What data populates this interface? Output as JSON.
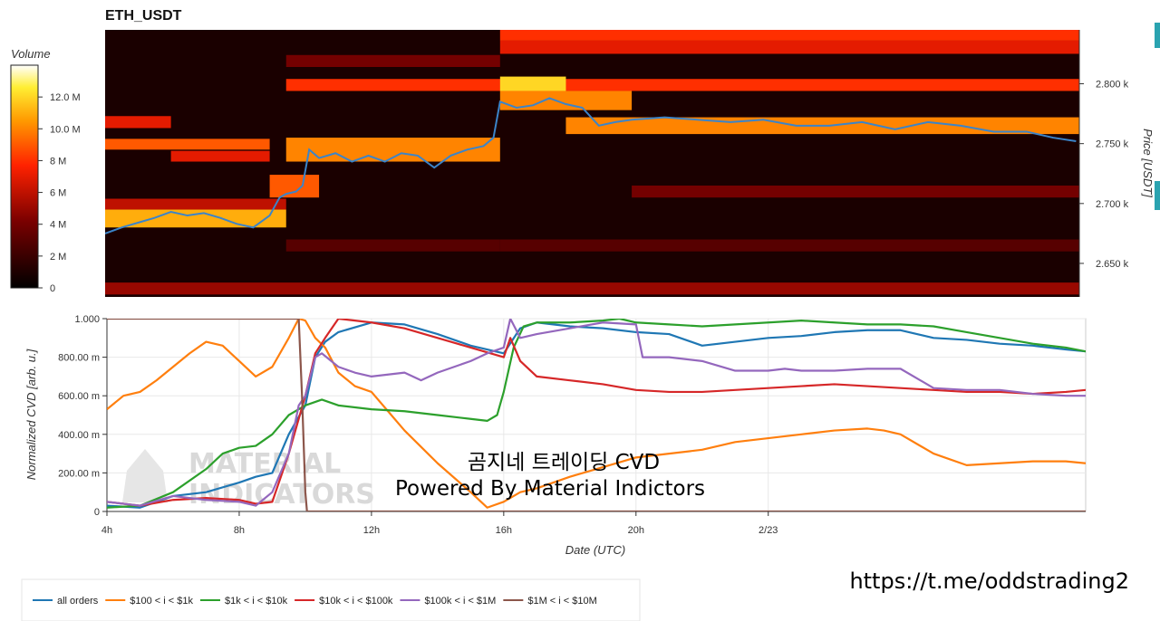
{
  "colors": {
    "all": "#1f77b4",
    "s100": "#ff7f0e",
    "s1k": "#2ca02c",
    "s10k": "#d62728",
    "s100k": "#9467bd",
    "s1m": "#8c564b",
    "price_line": "#3b84c9",
    "accent": "#2aa3b0"
  },
  "chart_data": [
    {
      "type": "heatmap",
      "title": "ETH_USDT",
      "ylabel": "Price [USDT]",
      "y_ticks": [
        "2.800 k",
        "2.750 k",
        "2.700 k",
        "2.650 k"
      ],
      "y_tick_values": [
        2800,
        2750,
        2700,
        2650
      ],
      "ylim": [
        2622,
        2845
      ],
      "xlim": [
        4,
        33.6
      ],
      "colorbar": {
        "label": "Volume",
        "ticks": [
          "12.0 M",
          "10.0 M",
          "8 M",
          "6 M",
          "4 M",
          "2 M",
          "0"
        ],
        "tick_values": [
          12,
          10,
          8,
          6,
          4,
          2,
          0
        ],
        "range": [
          0,
          14
        ]
      },
      "price_series": {
        "x": [
          4,
          4.5,
          5,
          5.5,
          6,
          6.5,
          7,
          7.5,
          8,
          8.5,
          9,
          9.3,
          9.5,
          9.8,
          10,
          10.2,
          10.5,
          11,
          11.5,
          12,
          12.5,
          13,
          13.5,
          14,
          14.5,
          15,
          15.5,
          15.8,
          16,
          16.5,
          17,
          17.5,
          18,
          18.5,
          19,
          19.5,
          20,
          21,
          22,
          23,
          24,
          25,
          26,
          27,
          28,
          29,
          30,
          31,
          32,
          32.8,
          33.5
        ],
        "y": [
          2675,
          2680,
          2684,
          2688,
          2693,
          2690,
          2692,
          2688,
          2683,
          2680,
          2690,
          2705,
          2708,
          2710,
          2715,
          2745,
          2738,
          2742,
          2735,
          2740,
          2735,
          2742,
          2740,
          2730,
          2740,
          2745,
          2748,
          2755,
          2785,
          2780,
          2782,
          2788,
          2783,
          2780,
          2765,
          2768,
          2770,
          2772,
          2770,
          2768,
          2770,
          2765,
          2765,
          2768,
          2762,
          2768,
          2765,
          2760,
          2760,
          2755,
          2752
        ]
      },
      "heat_bands": [
        {
          "x0": 16,
          "x1": 33.6,
          "y0": 2836,
          "y1": 2845,
          "v": 8
        },
        {
          "x0": 16,
          "x1": 33.6,
          "y0": 2825,
          "y1": 2836,
          "v": 7
        },
        {
          "x0": 9.5,
          "x1": 16,
          "y0": 2814,
          "y1": 2824,
          "v": 4
        },
        {
          "x0": 9.5,
          "x1": 33.6,
          "y0": 2794,
          "y1": 2804,
          "v": 8
        },
        {
          "x0": 16,
          "x1": 18,
          "y0": 2794,
          "y1": 2806,
          "v": 12
        },
        {
          "x0": 16,
          "x1": 20,
          "y0": 2778,
          "y1": 2794,
          "v": 10
        },
        {
          "x0": 18,
          "x1": 33.6,
          "y0": 2758,
          "y1": 2772,
          "v": 10
        },
        {
          "x0": 4,
          "x1": 6,
          "y0": 2763,
          "y1": 2773,
          "v": 7
        },
        {
          "x0": 4,
          "x1": 9,
          "y0": 2745,
          "y1": 2754,
          "v": 9
        },
        {
          "x0": 9.5,
          "x1": 16,
          "y0": 2735,
          "y1": 2755,
          "v": 10
        },
        {
          "x0": 6,
          "x1": 9,
          "y0": 2735,
          "y1": 2744,
          "v": 7
        },
        {
          "x0": 4,
          "x1": 9.5,
          "y0": 2680,
          "y1": 2695,
          "v": 11
        },
        {
          "x0": 4,
          "x1": 9.5,
          "y0": 2695,
          "y1": 2704,
          "v": 6
        },
        {
          "x0": 9,
          "x1": 10.5,
          "y0": 2705,
          "y1": 2724,
          "v": 9
        },
        {
          "x0": 20,
          "x1": 33.6,
          "y0": 2705,
          "y1": 2715,
          "v": 4
        },
        {
          "x0": 4,
          "x1": 33.6,
          "y0": 2624,
          "y1": 2634,
          "v": 5
        },
        {
          "x0": 16,
          "x1": 33.6,
          "y0": 2660,
          "y1": 2670,
          "v": 3
        },
        {
          "x0": 9.5,
          "x1": 16,
          "y0": 2660,
          "y1": 2670,
          "v": 3
        }
      ]
    },
    {
      "type": "line",
      "xlabel": "Date (UTC)",
      "ylabel": "Normalized CVD [arb. u.]",
      "xlim": [
        4,
        33.6
      ],
      "ylim": [
        0,
        1
      ],
      "x_ticks": [
        "4h",
        "8h",
        "12h",
        "16h",
        "20h",
        "2/23"
      ],
      "x_tick_values": [
        4,
        8,
        12,
        16,
        20,
        24
      ],
      "y_ticks": [
        "1.000",
        "800.00 m",
        "600.00 m",
        "400.00 m",
        "200.00 m",
        "0"
      ],
      "y_tick_values": [
        1,
        0.8,
        0.6,
        0.4,
        0.2,
        0
      ],
      "legend_position": "bottom",
      "series": [
        {
          "key": "all",
          "name": "all orders",
          "x": [
            4,
            5,
            6,
            7,
            8,
            8.5,
            9,
            9.5,
            10,
            10.3,
            10.6,
            11,
            12,
            13,
            14,
            15,
            16,
            16.5,
            17,
            18,
            19,
            20,
            21,
            22,
            23,
            24,
            25,
            26,
            27,
            28,
            29,
            30,
            31,
            32,
            33,
            33.6
          ],
          "y": [
            0.03,
            0.02,
            0.08,
            0.1,
            0.15,
            0.18,
            0.2,
            0.4,
            0.55,
            0.8,
            0.88,
            0.93,
            0.98,
            0.97,
            0.92,
            0.86,
            0.82,
            0.95,
            0.98,
            0.96,
            0.95,
            0.93,
            0.92,
            0.86,
            0.88,
            0.9,
            0.91,
            0.93,
            0.94,
            0.94,
            0.9,
            0.89,
            0.87,
            0.86,
            0.84,
            0.83
          ]
        },
        {
          "key": "s100",
          "name": "$100 < i < $1k",
          "x": [
            4,
            4.5,
            5,
            5.5,
            6,
            6.5,
            7,
            7.5,
            8,
            8.5,
            9,
            9.5,
            9.8,
            10,
            10.3,
            10.6,
            11,
            11.5,
            12,
            12.5,
            13,
            14,
            15,
            15.5,
            16,
            16.5,
            17,
            18,
            19,
            20,
            21,
            22,
            23,
            24,
            25,
            26,
            27,
            27.5,
            28,
            29,
            30,
            31,
            32,
            33,
            33.6
          ],
          "y": [
            0.53,
            0.6,
            0.62,
            0.68,
            0.75,
            0.82,
            0.88,
            0.86,
            0.78,
            0.7,
            0.75,
            0.9,
            1.0,
            0.99,
            0.9,
            0.85,
            0.72,
            0.65,
            0.62,
            0.52,
            0.42,
            0.25,
            0.1,
            0.02,
            0.05,
            0.1,
            0.12,
            0.18,
            0.23,
            0.28,
            0.3,
            0.32,
            0.36,
            0.38,
            0.4,
            0.42,
            0.43,
            0.42,
            0.4,
            0.3,
            0.24,
            0.25,
            0.26,
            0.26,
            0.25
          ]
        },
        {
          "key": "s1k",
          "name": "$1k < i < $10k",
          "x": [
            4,
            5,
            6,
            7,
            7.5,
            8,
            8.5,
            9,
            9.5,
            10,
            10.5,
            11,
            12,
            13,
            14,
            15,
            15.5,
            15.8,
            16,
            16.3,
            16.6,
            17,
            18,
            19,
            19.5,
            20,
            21,
            22,
            23,
            24,
            25,
            26,
            27,
            28,
            29,
            30,
            31,
            32,
            33,
            33.6
          ],
          "y": [
            0.02,
            0.03,
            0.1,
            0.22,
            0.3,
            0.33,
            0.34,
            0.4,
            0.5,
            0.55,
            0.58,
            0.55,
            0.53,
            0.52,
            0.5,
            0.48,
            0.47,
            0.5,
            0.62,
            0.85,
            0.96,
            0.98,
            0.98,
            0.99,
            1.0,
            0.98,
            0.97,
            0.96,
            0.97,
            0.98,
            0.99,
            0.98,
            0.97,
            0.97,
            0.96,
            0.93,
            0.9,
            0.87,
            0.85,
            0.83
          ]
        },
        {
          "key": "s10k",
          "name": "$10k < i < $100k",
          "x": [
            4,
            5,
            6,
            7,
            8,
            8.5,
            9,
            9.5,
            10,
            10.3,
            10.6,
            11,
            11.5,
            12,
            13,
            14,
            15,
            16,
            16.2,
            16.5,
            17,
            18,
            19,
            20,
            21,
            22,
            23,
            24,
            25,
            26,
            27,
            28,
            29,
            30,
            31,
            32,
            33,
            33.6
          ],
          "y": [
            0.05,
            0.03,
            0.06,
            0.07,
            0.06,
            0.04,
            0.05,
            0.3,
            0.6,
            0.82,
            0.9,
            1.0,
            0.99,
            0.98,
            0.95,
            0.9,
            0.85,
            0.8,
            0.9,
            0.78,
            0.7,
            0.68,
            0.66,
            0.63,
            0.62,
            0.62,
            0.63,
            0.64,
            0.65,
            0.66,
            0.65,
            0.64,
            0.63,
            0.62,
            0.62,
            0.61,
            0.62,
            0.63
          ]
        },
        {
          "key": "s100k",
          "name": "$100k < i < $1M",
          "x": [
            4,
            5,
            6,
            7,
            8,
            8.5,
            9,
            9.5,
            9.8,
            10,
            10.3,
            10.5,
            11,
            11.5,
            12,
            13,
            13.5,
            14,
            14.5,
            15,
            15.5,
            16,
            16.2,
            16.5,
            17,
            18,
            19,
            20,
            20.2,
            21,
            22,
            23,
            24,
            24.5,
            25,
            26,
            27,
            28,
            29,
            30,
            31,
            31.5,
            32,
            33,
            33.6
          ],
          "y": [
            0.05,
            0.03,
            0.08,
            0.06,
            0.05,
            0.03,
            0.1,
            0.3,
            0.55,
            0.6,
            0.8,
            0.82,
            0.75,
            0.72,
            0.7,
            0.72,
            0.68,
            0.72,
            0.75,
            0.78,
            0.82,
            0.85,
            1.0,
            0.9,
            0.92,
            0.95,
            0.98,
            0.97,
            0.8,
            0.8,
            0.78,
            0.73,
            0.73,
            0.74,
            0.73,
            0.73,
            0.74,
            0.74,
            0.64,
            0.63,
            0.63,
            0.62,
            0.61,
            0.6,
            0.6
          ]
        },
        {
          "key": "s1m",
          "name": "$1M < i < $10M",
          "x": [
            4,
            9.6,
            9.8,
            9.9,
            10,
            10.05,
            33.6
          ],
          "y": [
            1.0,
            1.0,
            1.0,
            0.6,
            0.1,
            0.0,
            0.0
          ]
        }
      ]
    }
  ],
  "overlay": {
    "line1": "곰지네 트레이딩 CVD",
    "line2": "Powered By Material Indictors"
  },
  "watermark": {
    "line1": "MATERIAL",
    "line2": "INDICATORS"
  },
  "footer": {
    "url": "https://t.me/oddstrading2"
  }
}
